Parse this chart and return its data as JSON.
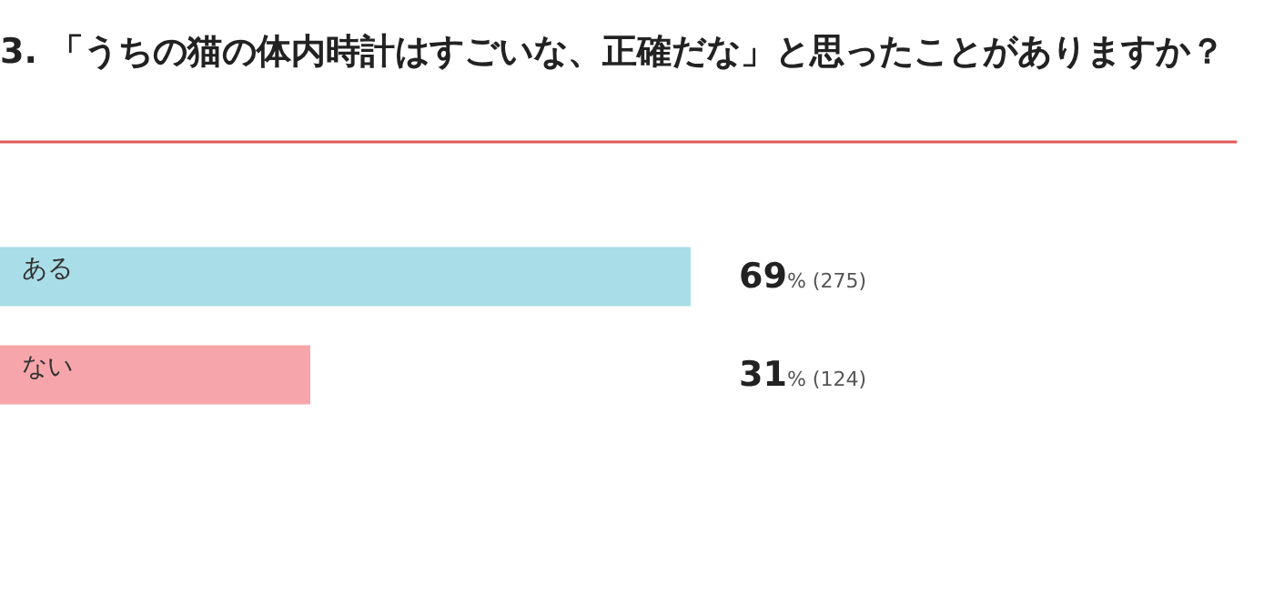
{
  "chart_data": {
    "type": "bar",
    "orientation": "horizontal",
    "title": "3. 「うちの猫の体内時計はすごいな、正確だな」と思ったことがありますか？",
    "categories": [
      "ある",
      "ない"
    ],
    "values": [
      69,
      31
    ],
    "colors": [
      "#a9dde7",
      "#f6a6aa"
    ],
    "value_labels": [
      "69% (275)",
      "31% (124)"
    ],
    "legend": false
  }
}
